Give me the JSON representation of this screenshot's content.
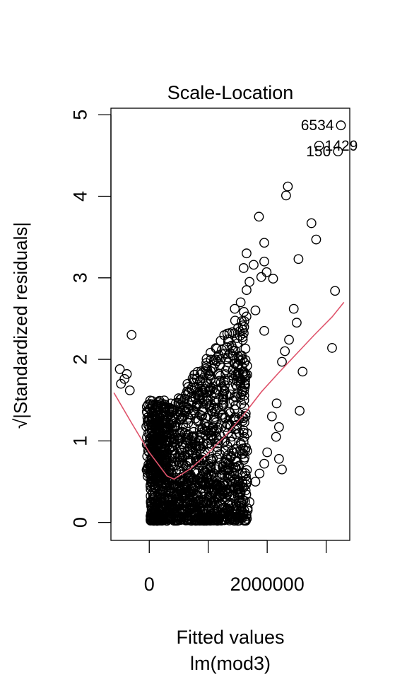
{
  "chart_data": {
    "type": "scatter",
    "title": "Scale-Location",
    "xlabel": "Fitted values",
    "sublabel": "lm(mod3)",
    "ylabel": "√|Standardized residuals|",
    "xlim": [
      -650000,
      3400000
    ],
    "ylim": [
      -0.22,
      5.08
    ],
    "xticks": [
      0,
      2000000
    ],
    "xtick_labels": [
      "0",
      "2000000"
    ],
    "yticks": [
      0,
      1,
      2,
      3,
      4,
      5
    ],
    "ytick_labels": [
      "0",
      "1",
      "2",
      "3",
      "4",
      "5"
    ],
    "colors": {
      "points": "#000000",
      "smooth": "#DF536B"
    },
    "labeled_points": [
      {
        "label": "6534",
        "x": 3250000,
        "y": 4.87
      },
      {
        "label": "1429",
        "x": 2880000,
        "y": 4.62
      },
      {
        "label": "150",
        "x": 3200000,
        "y": 4.55
      }
    ],
    "outlier_points": [
      [
        2350000,
        4.12
      ],
      [
        2320000,
        4.01
      ],
      [
        2750000,
        3.67
      ],
      [
        2830000,
        3.47
      ],
      [
        1860000,
        3.75
      ],
      [
        1950000,
        3.43
      ],
      [
        2530000,
        3.23
      ],
      [
        3150000,
        2.84
      ],
      [
        3100000,
        2.14
      ],
      [
        2100000,
        2.99
      ],
      [
        1950000,
        3.2
      ],
      [
        1990000,
        3.07
      ],
      [
        1650000,
        3.3
      ],
      [
        1770000,
        3.16
      ],
      [
        2500000,
        2.45
      ],
      [
        2450000,
        2.62
      ],
      [
        2370000,
        2.24
      ],
      [
        2600000,
        1.85
      ],
      [
        2550000,
        1.37
      ],
      [
        1900000,
        3.01
      ],
      [
        -300000,
        2.3
      ],
      [
        -500000,
        1.88
      ],
      [
        -330000,
        1.62
      ],
      [
        -420000,
        1.76
      ],
      [
        -480000,
        1.7
      ],
      [
        -380000,
        1.82
      ],
      [
        1800000,
        2.6
      ],
      [
        1950000,
        2.35
      ],
      [
        2250000,
        1.97
      ],
      [
        2300000,
        2.1
      ],
      [
        2150000,
        1.05
      ],
      [
        2200000,
        1.17
      ],
      [
        1950000,
        0.72
      ],
      [
        2000000,
        0.86
      ],
      [
        1800000,
        0.5
      ],
      [
        1870000,
        0.6
      ],
      [
        1500000,
        0.02
      ],
      [
        1700000,
        0.25
      ],
      [
        1600000,
        0.43
      ],
      [
        2250000,
        0.65
      ],
      [
        2200000,
        0.78
      ],
      [
        2080000,
        1.3
      ],
      [
        2160000,
        1.46
      ],
      [
        1650000,
        2.85
      ],
      [
        1550000,
        2.7
      ],
      [
        1700000,
        2.95
      ],
      [
        1450000,
        2.62
      ],
      [
        1600000,
        3.12
      ]
    ],
    "smooth": {
      "x": [
        -600000,
        -300000,
        0,
        300000,
        420000,
        700000,
        1000000,
        1300000,
        1600000,
        1900000,
        2200000,
        2500000,
        2800000,
        3100000,
        3300000
      ],
      "y": [
        1.59,
        1.22,
        0.86,
        0.57,
        0.53,
        0.66,
        0.85,
        1.07,
        1.32,
        1.6,
        1.84,
        2.07,
        2.3,
        2.52,
        2.7
      ]
    },
    "density_note": ""
  }
}
